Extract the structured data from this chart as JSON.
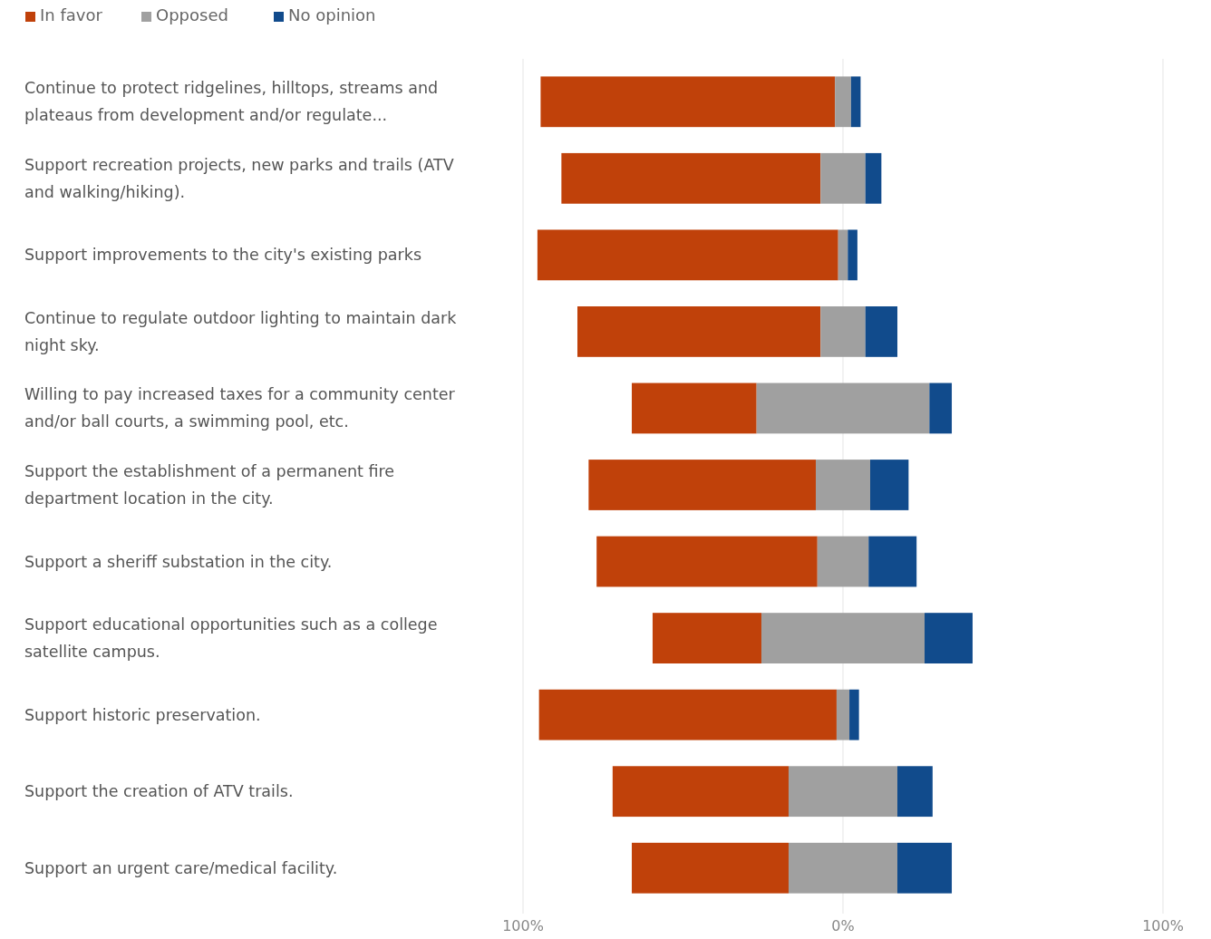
{
  "chart_data": {
    "type": "bar",
    "orientation": "horizontal",
    "categories": [
      "Continue to protect ridgelines, hilltops, streams and plateaus from development and/or regulate...",
      "Support recreation projects, new parks and trails (ATV and walking/hiking).",
      "Support improvements to the city's existing parks",
      "Continue to regulate outdoor lighting to maintain dark night sky.",
      "Willing to pay increased taxes for a community center and/or ball courts, a swimming pool, etc.",
      "Support the establishment of a permanent fire department location in the city.",
      "Support a sheriff substation in the city.",
      "Support educational opportunities such as a college satellite campus.",
      "Support historic preservation.",
      "Support the creation of ATV trails.",
      "Support an urgent care/medical facility."
    ],
    "series": [
      {
        "name": "In favor",
        "color": "#c0410a",
        "base": [
          -94.5,
          -88,
          -95.5,
          -83,
          -66,
          -79.5,
          -77,
          -59.5,
          -95,
          -72,
          -66
        ],
        "values": [
          92,
          81,
          94,
          76,
          39,
          71,
          69,
          34,
          93,
          55,
          49
        ]
      },
      {
        "name": "Opposed",
        "color": "#a0a0a0",
        "base": [
          -2.5,
          -7,
          -1.5,
          -7,
          -27,
          -8.5,
          -8,
          -25.5,
          -2,
          -17,
          -17
        ],
        "values": [
          5,
          14,
          3,
          14,
          54,
          17,
          16,
          51,
          4,
          34,
          34
        ]
      },
      {
        "name": "No opinion",
        "color": "#114b8c",
        "base": [
          2.5,
          7,
          1.5,
          7,
          27,
          8.5,
          8,
          25.5,
          2,
          17,
          17
        ],
        "values": [
          3,
          5,
          3,
          10,
          7,
          12,
          15,
          15,
          3,
          11,
          17
        ]
      }
    ],
    "xlim": [
      -100,
      100
    ],
    "xticks": [
      {
        "value": -100,
        "label": "100%"
      },
      {
        "value": 0,
        "label": "0%"
      },
      {
        "value": 100,
        "label": "100%"
      }
    ],
    "grid": "x",
    "legend": "top left"
  }
}
